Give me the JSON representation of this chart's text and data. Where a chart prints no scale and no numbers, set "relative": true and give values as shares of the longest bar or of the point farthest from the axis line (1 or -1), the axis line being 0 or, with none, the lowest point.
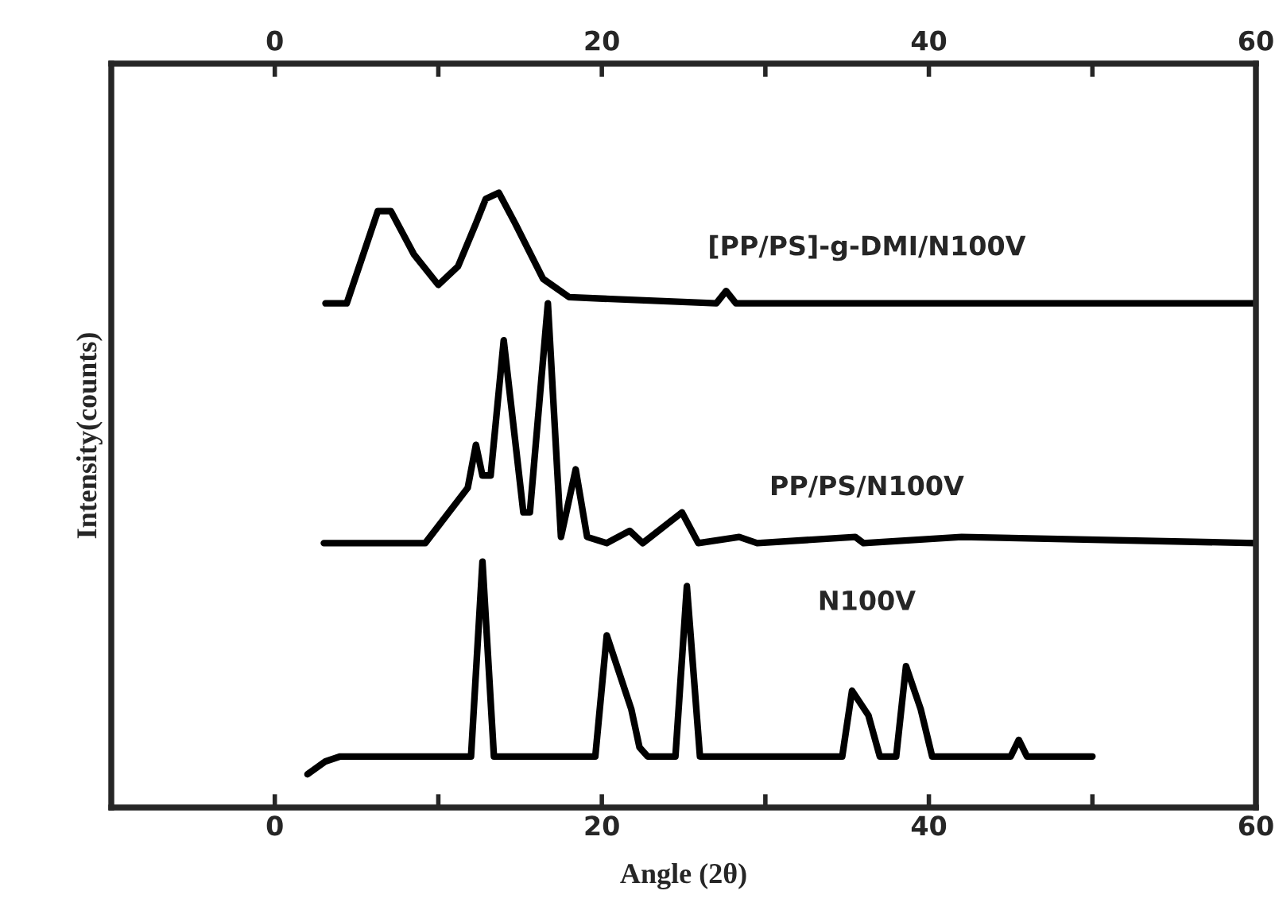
{
  "chart_data": {
    "type": "line",
    "relative": true,
    "xlabel": "Angle (2θ)",
    "ylabel": "Intensity(counts)",
    "xlim": [
      -10,
      60
    ],
    "xticks": [
      0,
      {
        "value": 10,
        "label": null
      },
      20,
      {
        "value": 30,
        "label": null
      },
      40,
      {
        "value": 50,
        "label": null
      },
      60
    ],
    "x2lim": [
      -10,
      60
    ],
    "x2ticks": [
      0,
      {
        "value": 10,
        "label": null
      },
      20,
      {
        "value": 30,
        "label": null
      },
      40,
      {
        "value": 50,
        "label": null
      },
      60
    ],
    "tick_labels": "x",
    "grid": false,
    "legend": false,
    "marker": "none",
    "line_style": "solid",
    "series": [
      {
        "name": "N100V",
        "color": "#000000",
        "x": [
          2,
          3.1,
          4,
          12.0,
          12.7,
          13.4,
          19.6,
          20.3,
          21.8,
          22.3,
          22.8,
          24.5,
          25.2,
          26,
          34.7,
          35.3,
          36.3,
          37,
          38.0,
          38.6,
          39.5,
          40.2,
          45,
          45.5,
          46,
          50
        ],
        "values": [
          0.054,
          0.075,
          0.083,
          0.083,
          0.4,
          0.083,
          0.083,
          0.28,
          0.16,
          0.098,
          0.083,
          0.083,
          0.36,
          0.083,
          0.083,
          0.19,
          0.15,
          0.083,
          0.083,
          0.23,
          0.16,
          0.083,
          0.083,
          0.11,
          0.083,
          0.083
        ]
      },
      {
        "name": "PP/PS/N100V",
        "color": "#000000",
        "x": [
          3,
          9.2,
          11.8,
          12.3,
          12.7,
          13.2,
          14.0,
          15.2,
          15.6,
          16.7,
          17.5,
          18.4,
          19.1,
          20.3,
          21.7,
          22.5,
          24.9,
          25.9,
          28.4,
          29.5,
          35.5,
          36,
          42,
          60
        ],
        "values": [
          0.43,
          0.43,
          0.52,
          0.59,
          0.54,
          0.54,
          0.76,
          0.48,
          0.48,
          0.82,
          0.44,
          0.55,
          0.44,
          0.43,
          0.45,
          0.43,
          0.48,
          0.43,
          0.44,
          0.43,
          0.44,
          0.43,
          0.44,
          0.43
        ]
      },
      {
        "name": "[PP/PS]-g-DMI/N100V",
        "color": "#000000",
        "x": [
          3.1,
          4.4,
          6.3,
          7.1,
          8.5,
          10.0,
          11.2,
          12.3,
          12.9,
          13.7,
          14.7,
          16.4,
          18.0,
          27.0,
          27.6,
          28.2,
          60
        ],
        "values": [
          0.82,
          0.82,
          0.97,
          0.97,
          0.9,
          0.85,
          0.88,
          0.95,
          0.99,
          1.0,
          0.95,
          0.86,
          0.83,
          0.82,
          0.84,
          0.82,
          0.82
        ]
      }
    ]
  }
}
